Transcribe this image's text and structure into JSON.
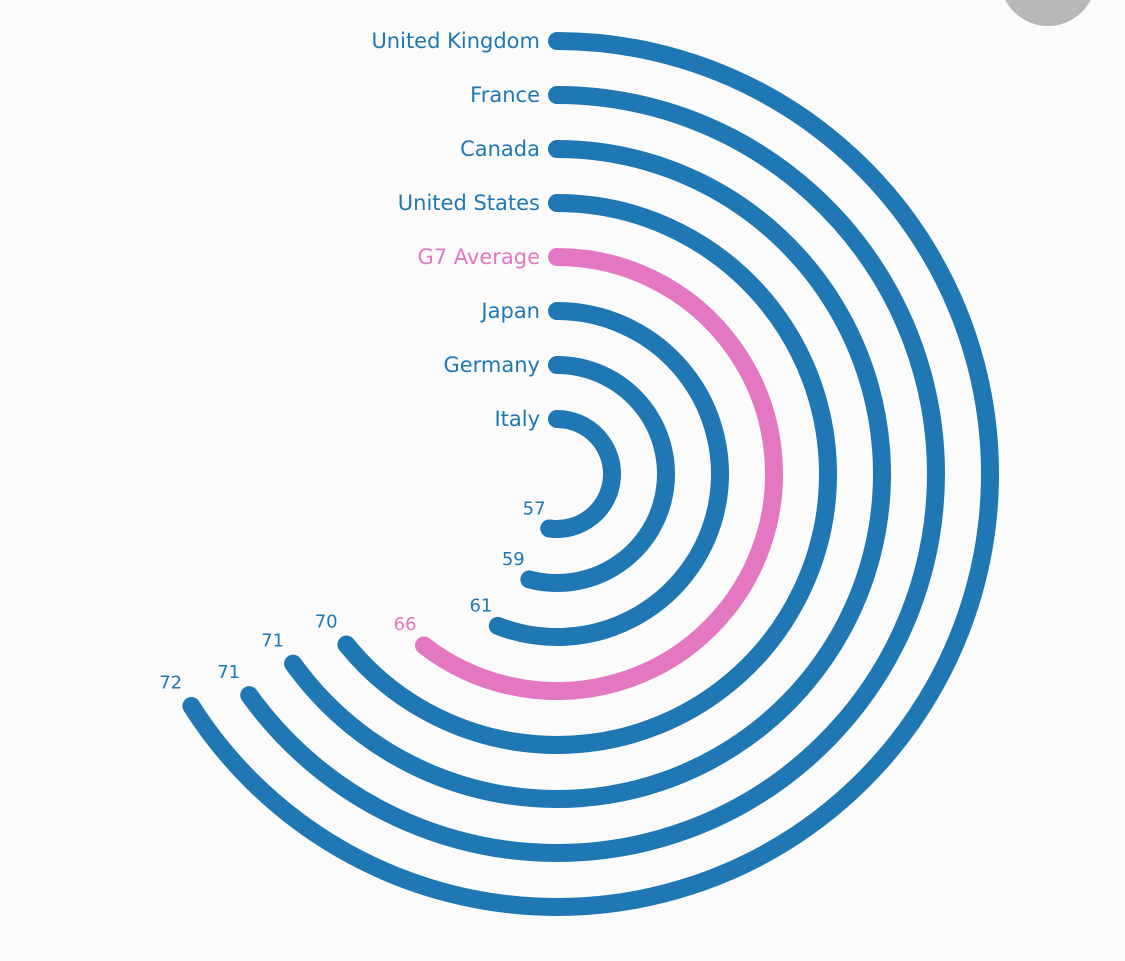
{
  "chart_data": {
    "type": "radial-bar",
    "title": "",
    "categories": [
      "United Kingdom",
      "France",
      "Canada",
      "United States",
      "G7 Average",
      "Japan",
      "Germany",
      "Italy"
    ],
    "values": [
      72,
      71,
      71,
      70,
      66,
      61,
      59,
      57
    ],
    "value_labels": [
      "72",
      "71",
      "71",
      "70",
      "66",
      "61",
      "59",
      "57"
    ],
    "highlight": "G7 Average",
    "colors": {
      "bar": "#1f77b4",
      "highlight": "#e377c2",
      "background": "#fbfbfb"
    }
  }
}
